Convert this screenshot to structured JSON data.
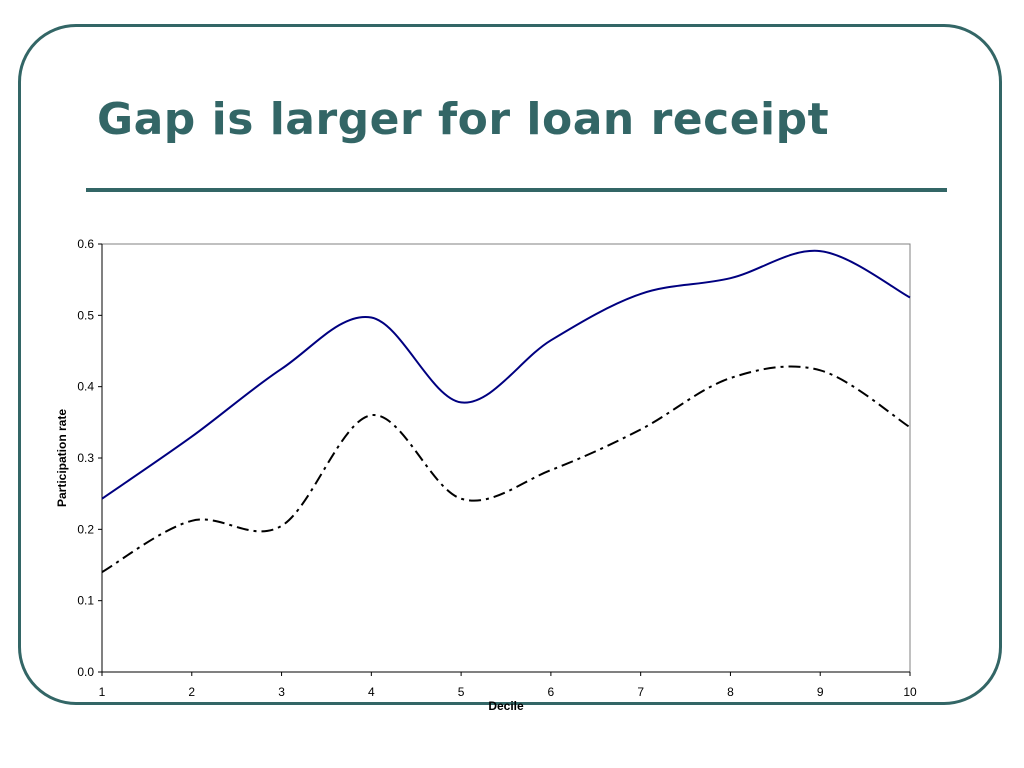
{
  "slide": {
    "title": "Gap is larger for loan receipt",
    "accent_color": "#336666"
  },
  "chart_data": {
    "type": "line",
    "title": "",
    "xlabel": "Decile",
    "ylabel": "Participation rate",
    "x": [
      1,
      2,
      3,
      4,
      5,
      6,
      7,
      8,
      9,
      10
    ],
    "xlim": [
      1,
      10
    ],
    "ylim": [
      0,
      0.6
    ],
    "x_ticks": [
      "1",
      "2",
      "3",
      "4",
      "5",
      "6",
      "7",
      "8",
      "9",
      "10"
    ],
    "y_ticks": [
      "0.0",
      "0.1",
      "0.2",
      "0.3",
      "0.4",
      "0.5",
      "0.6"
    ],
    "y_tick_values": [
      0,
      0.1,
      0.2,
      0.3,
      0.4,
      0.5,
      0.6
    ],
    "grid": false,
    "legend": "none",
    "series": [
      {
        "values": [
          0.243,
          0.33,
          0.425,
          0.497,
          0.378,
          0.465,
          0.53,
          0.552,
          0.59,
          0.525
        ],
        "color": "#000080",
        "line_style": "solid"
      },
      {
        "values": [
          0.14,
          0.212,
          0.205,
          0.36,
          0.243,
          0.283,
          0.34,
          0.412,
          0.423,
          0.343
        ],
        "color": "#000000",
        "line_style": "dash-dot"
      }
    ]
  }
}
